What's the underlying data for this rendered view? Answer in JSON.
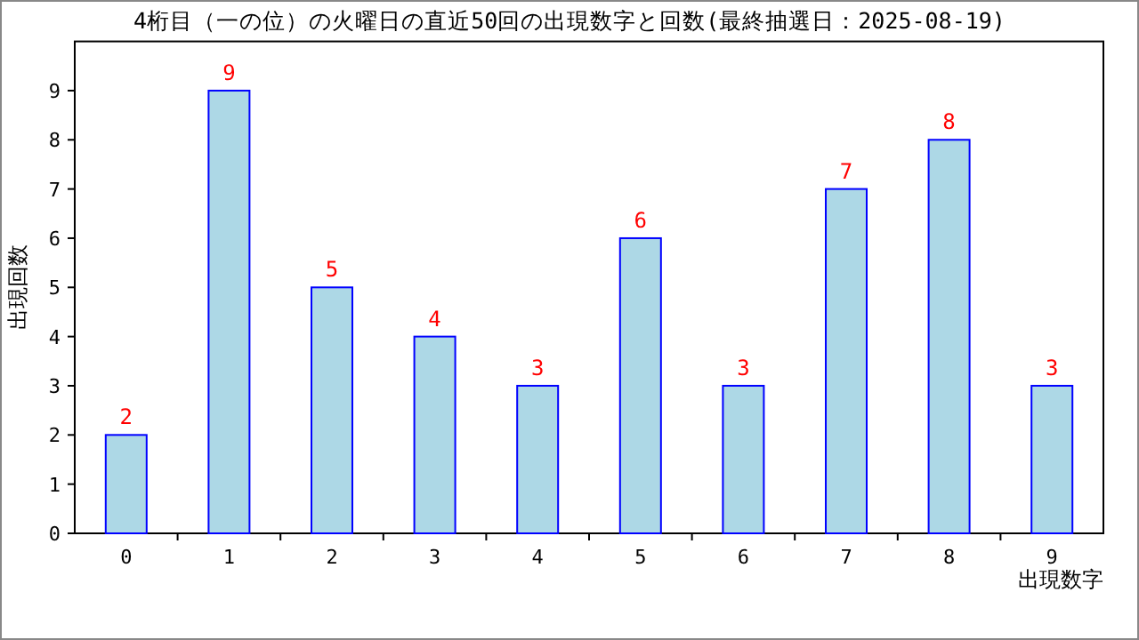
{
  "chart_data": {
    "type": "bar",
    "title": "4桁目（一の位）の火曜日の直近50回の出現数字と回数(最終抽選日：2025-08-19)",
    "categories": [
      "0",
      "1",
      "2",
      "3",
      "4",
      "5",
      "6",
      "7",
      "8",
      "9"
    ],
    "values": [
      2,
      9,
      5,
      4,
      3,
      6,
      3,
      7,
      8,
      3
    ],
    "color": "#add8e6",
    "xlabel": "出現数字",
    "ylabel": "出現回数",
    "ylim": [
      0,
      10
    ],
    "yticks": [
      0,
      1,
      2,
      3,
      4,
      5,
      6,
      7,
      8,
      9
    ],
    "data_labels": true,
    "grid": false
  }
}
